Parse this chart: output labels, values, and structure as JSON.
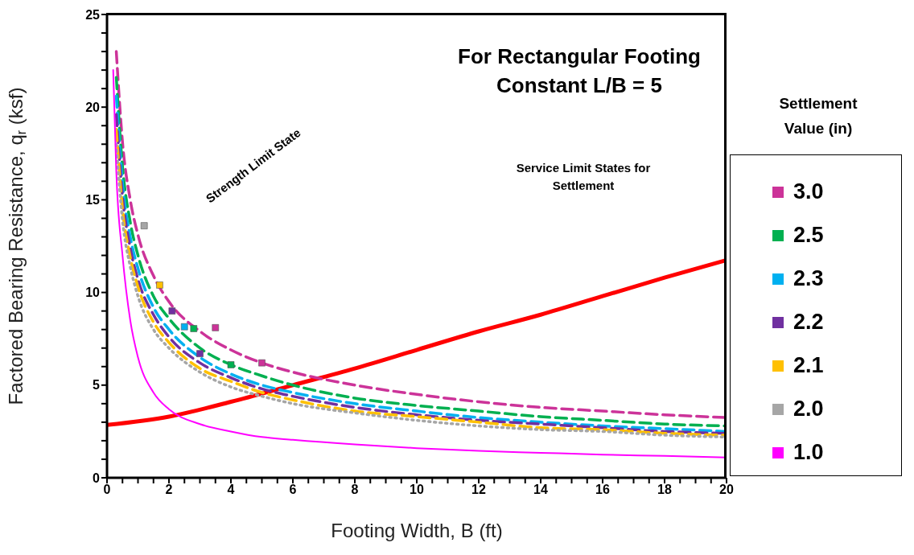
{
  "chart_data": {
    "type": "line",
    "title": "For Rectangular Footing",
    "subtitle": "Constant L/B = 5",
    "xlabel": "Footing Width, B (ft)",
    "ylabel": "Factored Bearing Resistance, q$_{r}$ (ksf)",
    "legend_title": "Settlement Value (in)",
    "legend": "right",
    "annotations": [
      "Strength Limit State",
      "Service Limit States for Settlement"
    ],
    "xlim": [
      0,
      20
    ],
    "ylim": [
      0,
      25
    ],
    "xticks": [
      0,
      {
        "value": 0.5,
        "label": null
      },
      {
        "value": 1,
        "label": null
      },
      {
        "value": 1.5,
        "label": null
      },
      2,
      {
        "value": 2.5,
        "label": null
      },
      {
        "value": 3,
        "label": null
      },
      {
        "value": 3.5,
        "label": null
      },
      4,
      {
        "value": 4.5,
        "label": null
      },
      {
        "value": 5,
        "label": null
      },
      {
        "value": 5.5,
        "label": null
      },
      6,
      {
        "value": 6.5,
        "label": null
      },
      {
        "value": 7,
        "label": null
      },
      {
        "value": 7.5,
        "label": null
      },
      8,
      {
        "value": 8.5,
        "label": null
      },
      {
        "value": 9,
        "label": null
      },
      {
        "value": 9.5,
        "label": null
      },
      10,
      {
        "value": 10.5,
        "label": null
      },
      {
        "value": 11,
        "label": null
      },
      {
        "value": 11.5,
        "label": null
      },
      12,
      {
        "value": 12.5,
        "label": null
      },
      {
        "value": 13,
        "label": null
      },
      {
        "value": 13.5,
        "label": null
      },
      14,
      {
        "value": 14.5,
        "label": null
      },
      {
        "value": 15,
        "label": null
      },
      {
        "value": 15.5,
        "label": null
      },
      16,
      {
        "value": 16.5,
        "label": null
      },
      {
        "value": 17,
        "label": null
      },
      {
        "value": 17.5,
        "label": null
      },
      18,
      {
        "value": 18.5,
        "label": null
      },
      {
        "value": 19,
        "label": null
      },
      {
        "value": 19.5,
        "label": null
      },
      20
    ],
    "yticks": [
      0,
      {
        "value": 1,
        "label": null
      },
      {
        "value": 2,
        "label": null
      },
      {
        "value": 3,
        "label": null
      },
      {
        "value": 4,
        "label": null
      },
      5,
      {
        "value": 6,
        "label": null
      },
      {
        "value": 7,
        "label": null
      },
      {
        "value": 8,
        "label": null
      },
      {
        "value": 9,
        "label": null
      },
      10,
      {
        "value": 11,
        "label": null
      },
      {
        "value": 12,
        "label": null
      },
      {
        "value": 13,
        "label": null
      },
      {
        "value": 14,
        "label": null
      },
      15,
      {
        "value": 16,
        "label": null
      },
      {
        "value": 17,
        "label": null
      },
      {
        "value": 18,
        "label": null
      },
      {
        "value": 19,
        "label": null
      },
      20,
      {
        "value": 21,
        "label": null
      },
      {
        "value": 22,
        "label": null
      },
      {
        "value": 23,
        "label": null
      },
      {
        "value": 24,
        "label": null
      },
      25
    ],
    "series": [
      {
        "color": "#ff0000",
        "line_style": "solid",
        "x": [
          0,
          2,
          4,
          6,
          8,
          10,
          12,
          14,
          16,
          18,
          20
        ],
        "values": [
          2.85,
          3.3,
          4.1,
          5.0,
          5.9,
          6.9,
          7.9,
          8.8,
          9.8,
          10.8,
          11.75
        ]
      },
      {
        "color": "#cc3399",
        "line_style": "dashed",
        "x": [
          0.3,
          0.5,
          0.75,
          1,
          1.5,
          2,
          3,
          4,
          5,
          6,
          8,
          10,
          12,
          14,
          16,
          18,
          20
        ],
        "values": [
          23.0,
          18.1,
          15.0,
          13.1,
          10.9,
          9.5,
          7.9,
          6.9,
          6.2,
          5.7,
          5.0,
          4.5,
          4.1,
          3.8,
          3.6,
          3.4,
          3.25
        ]
      },
      {
        "color": "#00b050",
        "line_style": "dashed",
        "x": [
          0.3,
          0.5,
          0.75,
          1,
          1.5,
          2,
          3,
          4,
          5,
          6,
          8,
          10,
          12,
          14,
          16,
          18,
          20
        ],
        "values": [
          21.6,
          16.8,
          13.8,
          12.0,
          9.8,
          8.6,
          7.0,
          6.1,
          5.5,
          5.0,
          4.3,
          3.9,
          3.6,
          3.3,
          3.1,
          2.9,
          2.8
        ]
      },
      {
        "color": "#00b0f0",
        "line_style": "dashed",
        "x": [
          0.3,
          0.5,
          0.75,
          1,
          1.5,
          2,
          3,
          4,
          5,
          6,
          8,
          10,
          12,
          14,
          16,
          18,
          20
        ],
        "values": [
          20.6,
          15.9,
          13.0,
          11.3,
          9.2,
          8.0,
          6.5,
          5.6,
          5.0,
          4.6,
          4.0,
          3.6,
          3.25,
          3.0,
          2.8,
          2.65,
          2.5
        ]
      },
      {
        "color": "#7030a0",
        "line_style": "dashed",
        "x": [
          0.3,
          0.5,
          0.75,
          1,
          1.5,
          2,
          3,
          4,
          5,
          6,
          8,
          10,
          12,
          14,
          16,
          18,
          20
        ],
        "values": [
          19.6,
          15.2,
          12.4,
          10.7,
          8.8,
          7.6,
          6.2,
          5.4,
          4.8,
          4.4,
          3.8,
          3.4,
          3.1,
          2.9,
          2.7,
          2.5,
          2.4
        ]
      },
      {
        "color": "#ffc000",
        "line_style": "dashed",
        "x": [
          0.3,
          0.5,
          0.75,
          1,
          1.5,
          2,
          3,
          4,
          5,
          6,
          8,
          10,
          12,
          14,
          16,
          18,
          20
        ],
        "values": [
          18.8,
          14.5,
          11.9,
          10.3,
          8.4,
          7.3,
          5.9,
          5.2,
          4.6,
          4.2,
          3.6,
          3.3,
          3.0,
          2.7,
          2.6,
          2.4,
          2.3
        ]
      },
      {
        "color": "#a6a6a6",
        "line_style": "dotted",
        "x": [
          0.3,
          0.5,
          0.75,
          1,
          1.5,
          2,
          3,
          4,
          5,
          6,
          8,
          10,
          12,
          14,
          16,
          18,
          20
        ],
        "values": [
          18.0,
          13.9,
          11.4,
          9.8,
          8.0,
          7.0,
          5.7,
          4.9,
          4.4,
          4.0,
          3.5,
          3.1,
          2.8,
          2.6,
          2.5,
          2.3,
          2.2
        ]
      },
      {
        "type": "scatter",
        "name": "3.0",
        "color": "#cc3399",
        "x": [
          3.5,
          5
        ],
        "values": [
          8.1,
          6.2
        ]
      },
      {
        "type": "scatter",
        "name": "2.5",
        "color": "#00b050",
        "x": [
          2.8,
          4
        ],
        "values": [
          8.05,
          6.1
        ]
      },
      {
        "type": "scatter",
        "name": "2.3",
        "color": "#00b0f0",
        "x": [
          2.5
        ],
        "values": [
          8.15
        ]
      },
      {
        "type": "scatter",
        "name": "2.2",
        "color": "#7030a0",
        "x": [
          2.1,
          3
        ],
        "values": [
          9.0,
          6.7
        ]
      },
      {
        "type": "scatter",
        "name": "2.1",
        "color": "#ffc000",
        "x": [
          1.7
        ],
        "values": [
          10.4
        ]
      },
      {
        "type": "scatter",
        "name": "2.0",
        "color": "#a6a6a6",
        "x": [
          1.2
        ],
        "values": [
          13.6
        ]
      },
      {
        "name": "1.0",
        "color": "#ff00ff",
        "line_style": "solid",
        "x": [
          0.2,
          0.3,
          0.5,
          0.75,
          1,
          1.5,
          2,
          3,
          4,
          5,
          6,
          8,
          10,
          12,
          14,
          16,
          18,
          20
        ],
        "values": [
          22,
          16.5,
          12,
          8.5,
          6.5,
          4.6,
          3.7,
          2.9,
          2.5,
          2.2,
          2.05,
          1.8,
          1.6,
          1.45,
          1.35,
          1.25,
          1.18,
          1.1
        ]
      }
    ]
  }
}
